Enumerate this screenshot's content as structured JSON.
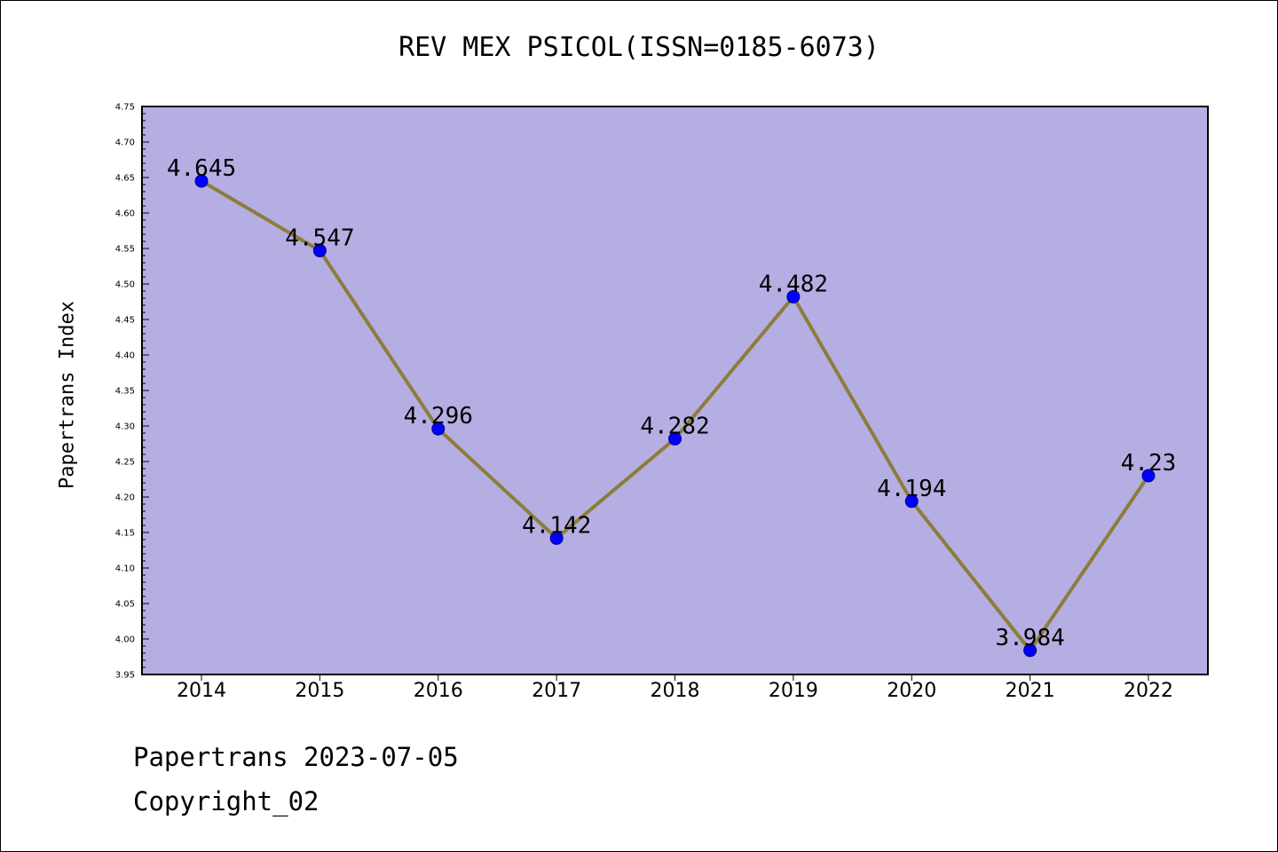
{
  "chart_data": {
    "type": "line",
    "title": "REV MEX PSICOL(ISSN=0185-6073)",
    "xlabel": "",
    "ylabel": "Papertrans Index",
    "categories": [
      "2014",
      "2015",
      "2016",
      "2017",
      "2018",
      "2019",
      "2020",
      "2021",
      "2022"
    ],
    "values": [
      4.645,
      4.547,
      4.296,
      4.142,
      4.282,
      4.482,
      4.194,
      3.984,
      4.23
    ],
    "data_labels": [
      "4.645",
      "4.547",
      "4.296",
      "4.142",
      "4.282",
      "4.482",
      "4.194",
      "3.984",
      "4.23"
    ],
    "ylim": [
      3.95,
      4.75
    ],
    "yticks": [
      "3.95",
      "4.00",
      "4.05",
      "4.10",
      "4.15",
      "4.20",
      "4.25",
      "4.30",
      "4.35",
      "4.40",
      "4.45",
      "4.50",
      "4.55",
      "4.60",
      "4.65",
      "4.70",
      "4.75"
    ],
    "grid": false,
    "legend": "none",
    "colors": {
      "plot_background": "#b5aee3",
      "line": "#8b7d3a",
      "marker": "#0000ff"
    }
  },
  "footer": {
    "line1": "Papertrans 2023-07-05",
    "line2": "Copyright_02"
  }
}
